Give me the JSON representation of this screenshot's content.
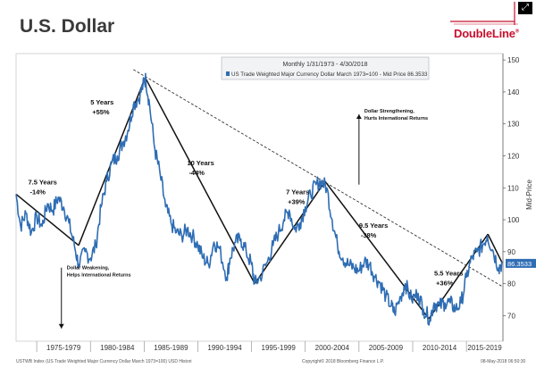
{
  "header": {
    "title": "U.S. Dollar",
    "brand": "DoubleLine",
    "brand_superscript": "®"
  },
  "footer": {
    "left": "USTWB Index (US Trade Weighted Major Currency Dollar March 1973=100) USD Histori",
    "middle": "Copyright© 2018 Bloomberg Finance L.P.",
    "right": "08-May-2018 06:50:30"
  },
  "colors": {
    "series": "#2e6db4",
    "trend": "#111111",
    "tag_bg": "#2e6db4",
    "brand": "#c8102e"
  },
  "chart_data": {
    "type": "line",
    "legend_header": "Monthly 1/31/1973 - 4/30/2018",
    "legend_entry": "US Trade Weighted Major Currency Dollar March 1973=100 - Mid Price 86.3533",
    "ylabel": "Mid-Price",
    "ylim": [
      62,
      152
    ],
    "xlim": [
      1973.08,
      2018.4
    ],
    "y_ticks": [
      70,
      80,
      90,
      100,
      110,
      120,
      130,
      140,
      150
    ],
    "x_periods": [
      {
        "label": "1975-1979",
        "start": 1975,
        "end": 1980
      },
      {
        "label": "1980-1984",
        "start": 1980,
        "end": 1985
      },
      {
        "label": "1985-1989",
        "start": 1985,
        "end": 1990
      },
      {
        "label": "1990-1994",
        "start": 1990,
        "end": 1995
      },
      {
        "label": "1995-1999",
        "start": 1995,
        "end": 2000
      },
      {
        "label": "2000-2004",
        "start": 2000,
        "end": 2005
      },
      {
        "label": "2005-2009",
        "start": 2005,
        "end": 2010
      },
      {
        "label": "2010-2014",
        "start": 2010,
        "end": 2015
      },
      {
        "label": "2015-2019",
        "start": 2015,
        "end": 2019
      }
    ],
    "last_value": "86.3533",
    "series": [
      {
        "x": [
          1973.08,
          1973.5,
          1974.0,
          1974.5,
          1975.0,
          1975.5,
          1976.0,
          1976.5,
          1977.0,
          1977.5,
          1978.0,
          1978.5,
          1978.9,
          1979.5,
          1980.0,
          1980.5,
          1981.0,
          1981.5,
          1982.0,
          1982.5,
          1983.0,
          1983.5,
          1984.0,
          1984.5,
          1985.0,
          1985.15,
          1985.5,
          1986.0,
          1986.5,
          1987.0,
          1987.5,
          1988.0,
          1988.5,
          1989.0,
          1989.5,
          1990.0,
          1990.5,
          1991.0,
          1991.5,
          1992.0,
          1992.7,
          1993.0,
          1993.5,
          1994.0,
          1994.5,
          1995.0,
          1995.3,
          1995.8,
          1996.5,
          1997.0,
          1997.5,
          1998.0,
          1998.5,
          1999.0,
          1999.5,
          2000.0,
          2000.5,
          2001.0,
          2001.5,
          2002.0,
          2002.5,
          2003.0,
          2003.5,
          2004.0,
          2004.5,
          2005.0,
          2005.5,
          2006.0,
          2006.5,
          2007.0,
          2007.5,
          2008.0,
          2008.3,
          2008.9,
          2009.3,
          2009.9,
          2010.5,
          2011.0,
          2011.6,
          2012.0,
          2012.5,
          2013.0,
          2013.5,
          2014.0,
          2014.5,
          2015.0,
          2015.5,
          2016.0,
          2016.5,
          2016.95,
          2017.5,
          2018.0,
          2018.33
        ],
        "y": [
          108,
          98,
          102,
          96,
          101,
          98,
          105,
          103,
          107,
          104,
          99,
          92,
          86,
          90,
          88,
          92,
          104,
          112,
          118,
          120,
          124,
          128,
          136,
          138,
          143,
          144,
          136,
          122,
          114,
          104,
          99,
          96,
          95,
          97,
          95,
          92,
          88,
          86,
          93,
          91,
          82,
          88,
          93,
          94,
          90,
          86,
          80,
          82,
          87,
          92,
          96,
          100,
          103,
          97,
          99,
          104,
          108,
          111,
          112,
          110,
          100,
          92,
          88,
          86,
          85,
          84,
          87,
          86,
          82,
          80,
          76,
          73,
          71,
          76,
          80,
          75,
          77,
          72,
          69,
          74,
          73,
          74,
          74,
          72,
          74,
          82,
          88,
          90,
          92,
          95,
          90,
          85,
          86.35
        ]
      }
    ],
    "trend_segments": [
      {
        "x": [
          1973.08,
          1978.9
        ],
        "y": [
          108,
          92
        ]
      },
      {
        "x": [
          1978.9,
          1985.1
        ],
        "y": [
          92,
          144.5
        ]
      },
      {
        "x": [
          1985.1,
          1995.3
        ],
        "y": [
          144.5,
          80
        ]
      },
      {
        "x": [
          1995.3,
          2001.85
        ],
        "y": [
          80,
          112
        ]
      },
      {
        "x": [
          2001.85,
          2011.5
        ],
        "y": [
          112,
          69
        ]
      },
      {
        "x": [
          2011.5,
          2017.0
        ],
        "y": [
          69,
          95.5
        ]
      },
      {
        "x": [
          2017.0,
          2018.33
        ],
        "y": [
          95.5,
          86.5
        ]
      }
    ],
    "trend_dashed": {
      "x": [
        1984.0,
        2018.4
      ],
      "y": [
        147,
        79
      ]
    },
    "annotations": [
      {
        "id": "ann-1",
        "line1": "7.5 Years",
        "line2": "-14%",
        "x": 1974.2,
        "y": 111
      },
      {
        "id": "ann-2",
        "line1": "5 Years",
        "line2": "+55%",
        "x": 1980.0,
        "y": 136
      },
      {
        "id": "ann-3",
        "line1": "10 Years",
        "line2": "-44%",
        "x": 1989.0,
        "y": 117
      },
      {
        "id": "ann-4",
        "line1": "7 Years",
        "line2": "+39%",
        "x": 1998.2,
        "y": 108
      },
      {
        "id": "ann-5",
        "line1": "9.5 Years",
        "line2": "-38%",
        "x": 2005.0,
        "y": 97.5
      },
      {
        "id": "ann-6",
        "line1": "5.5 Years",
        "line2": "+36%",
        "x": 2012.0,
        "y": 82.5
      }
    ],
    "arrow_up": {
      "line1": "Dollar Strengthening,",
      "line2": "Hurts International Returns",
      "x": 2005.0,
      "y_from": 111,
      "y_to": 133
    },
    "arrow_down": {
      "line1": "Dollar Weakening,",
      "line2": "Helps International Returns",
      "x": 1977.3,
      "y_from": 85,
      "y_to": 66
    }
  }
}
